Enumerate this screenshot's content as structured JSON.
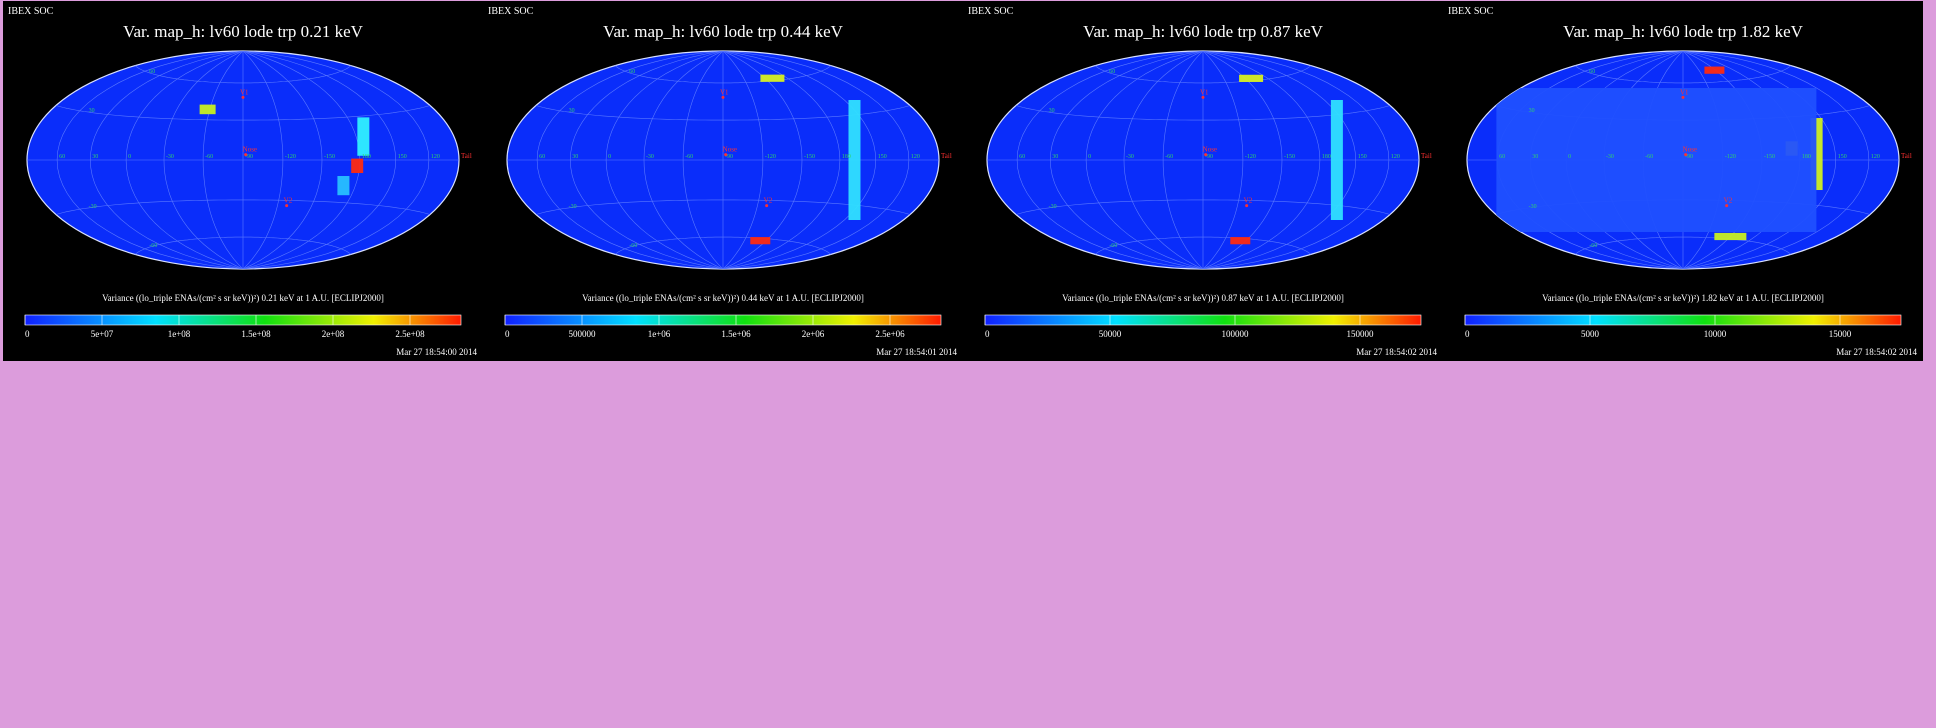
{
  "colors": {
    "page_background": "#dc9cdc",
    "panel_background": "#000000",
    "map_base": "#0a2dfa",
    "graticule": "#5a78ff",
    "grid_label": "#2fd36a",
    "marker": "#ff3030"
  },
  "map": {
    "longitude_labels": [
      "60",
      "30",
      "0",
      "-30",
      "-60",
      "-90",
      "-120",
      "-150",
      "180",
      "150",
      "120",
      "90"
    ],
    "latitude_labels": [
      "60",
      "30",
      "-30",
      "-60",
      "90",
      "-90"
    ],
    "markers": {
      "v1": "V1",
      "v2": "V2",
      "nose": "Nose",
      "tail": "Tail"
    }
  },
  "panels": [
    {
      "tag": "IBEX SOC",
      "title": "Var. map_h: lv60 lode trp 0.21 keV",
      "colorbar_title": "Variance ((lo_triple ENAs/(cm² s sr keV))²) 0.21 keV at 1 A.U. [ECLIPJ2000]",
      "ticks": [
        "0",
        "5e+07",
        "1e+08",
        "1.5e+08",
        "2e+08",
        "2.5e+08"
      ],
      "timestamp": "Mar 27 18:54:00 2014",
      "features": [
        {
          "lon": 96,
          "lat": 16,
          "w": 3,
          "h": 16,
          "color": "#30f0ff"
        },
        {
          "lon": 88,
          "lat": -4,
          "w": 3,
          "h": 6,
          "color": "#ff2a10"
        },
        {
          "lon": -32,
          "lat": 38,
          "w": 4,
          "h": 4,
          "color": "#c8f020"
        },
        {
          "lon": 80,
          "lat": -18,
          "w": 3,
          "h": 8,
          "color": "#28c0ff"
        }
      ]
    },
    {
      "tag": "IBEX SOC",
      "title": "Var. map_h: lv60 lode trp 0.44 keV",
      "colorbar_title": "Variance ((lo_triple ENAs/(cm² s sr keV))²) 0.44 keV at 1 A.U. [ECLIPJ2000]",
      "ticks": [
        "0",
        "500000",
        "1e+06",
        "1.5e+06",
        "2e+06",
        "2.5e+06"
      ],
      "timestamp": "Mar 27 18:54:01 2014",
      "features": [
        {
          "lon": 102,
          "lat": 0,
          "w": 3,
          "h": 50,
          "color": "#30e0ff"
        },
        {
          "lon": 70,
          "lat": 62,
          "w": 6,
          "h": 3,
          "color": "#d8f020"
        },
        {
          "lon": 52,
          "lat": -62,
          "w": 5,
          "h": 3,
          "color": "#ff2a10"
        }
      ]
    },
    {
      "tag": "IBEX SOC",
      "title": "Var. map_h: lv60 lode trp 0.87 keV",
      "colorbar_title": "Variance ((lo_triple ENAs/(cm² s sr keV))²) 0.87 keV at 1 A.U. [ECLIPJ2000]",
      "ticks": [
        "0",
        "50000",
        "100000",
        "150000"
      ],
      "timestamp": "Mar 27 18:54:02 2014",
      "features": [
        {
          "lon": 104,
          "lat": 0,
          "w": 3,
          "h": 50,
          "color": "#30e0ff"
        },
        {
          "lon": 68,
          "lat": 62,
          "w": 6,
          "h": 3,
          "color": "#d8f020"
        },
        {
          "lon": 52,
          "lat": -62,
          "w": 5,
          "h": 3,
          "color": "#ff2a10"
        }
      ]
    },
    {
      "tag": "IBEX SOC",
      "title": "Var. map_h: lv60 lode trp 1.82 keV",
      "colorbar_title": "Variance ((lo_triple ENAs/(cm² s sr keV))²) 1.82 keV at 1 A.U. [ECLIPJ2000]",
      "ticks": [
        "0",
        "5000",
        "10000",
        "15000"
      ],
      "timestamp": "Mar 27 18:54:02 2014",
      "features": [
        {
          "lon": 104,
          "lat": 4,
          "w": 3,
          "h": 30,
          "color": "#d0f020"
        },
        {
          "lon": 84,
          "lat": 8,
          "w": 3,
          "h": 6,
          "color": "#e8f020"
        },
        {
          "lon": 58,
          "lat": 70,
          "w": 5,
          "h": 3,
          "color": "#ff2a10"
        },
        {
          "lon": -20,
          "lat": 0,
          "w": 80,
          "h": 60,
          "color": "#2050ff"
        },
        {
          "lon": 60,
          "lat": -58,
          "w": 8,
          "h": 3,
          "color": "#c8f020"
        }
      ]
    }
  ]
}
